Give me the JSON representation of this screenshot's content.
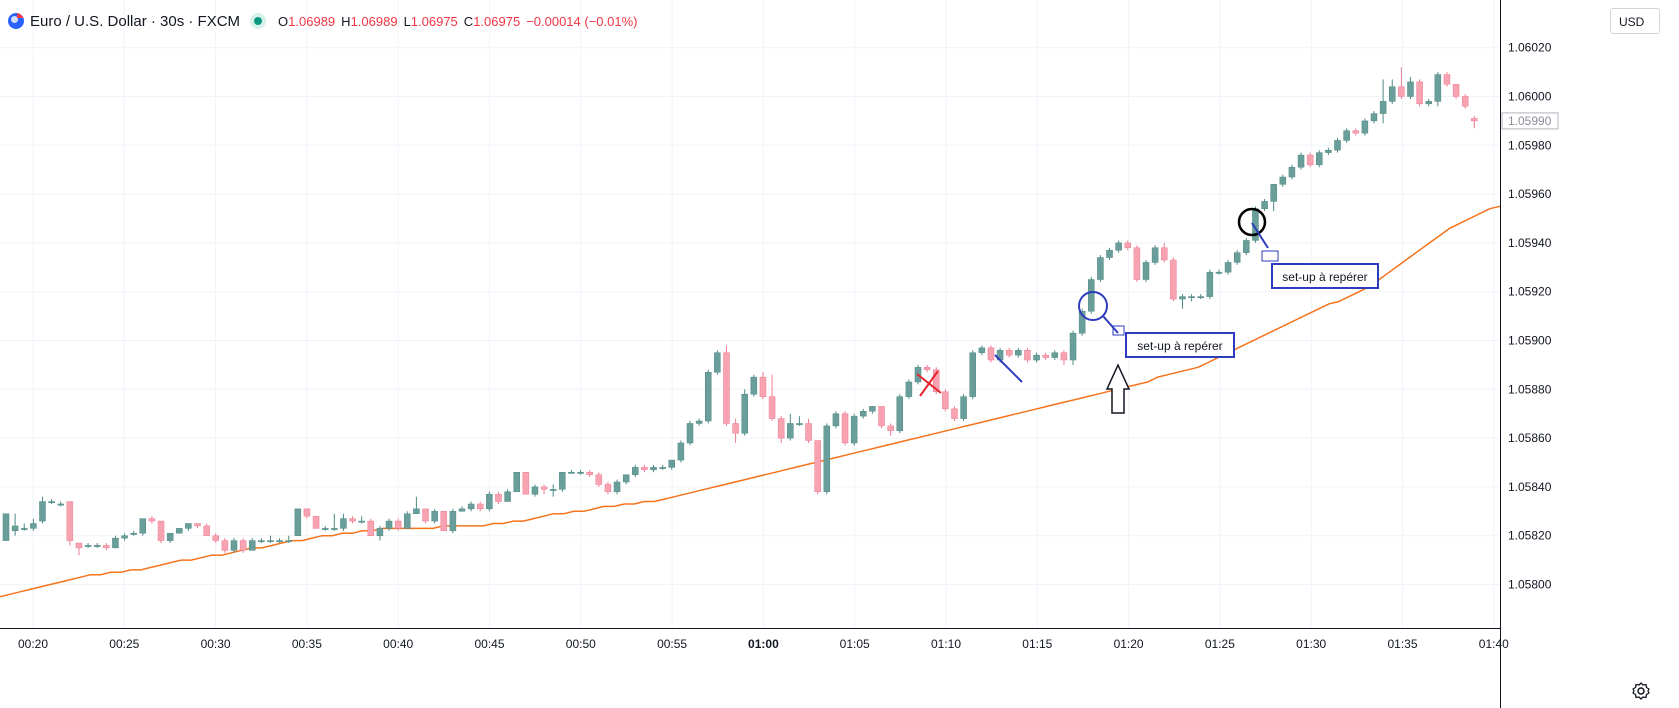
{
  "symbol": {
    "title": "Euro / U.S. Dollar · 30s · FXCM",
    "open_label": "O",
    "open": "1.06989",
    "high_label": "H",
    "high": "1.06989",
    "low_label": "L",
    "low": "1.06975",
    "close_label": "C",
    "close": "1.06975",
    "change": "−0.00014 (−0.01%)"
  },
  "currency_button": "USD",
  "icons": {
    "logo": "currency-logo-icon",
    "status": "market-status-dot-icon",
    "settings": "gear-icon"
  },
  "colors": {
    "up": "#6a9e9a",
    "down": "#f7a3b2",
    "ma_line": "#f7731c",
    "annotation_blue": "#2d3bbd",
    "annotation_red": "#e8252f"
  },
  "chart_data": {
    "type": "candlestick",
    "price_axis": {
      "ticks": [
        "1.05800",
        "1.05820",
        "1.05840",
        "1.05860",
        "1.05880",
        "1.05900",
        "1.05920",
        "1.05940",
        "1.05960",
        "1.05980",
        "1.06000",
        "1.06020"
      ],
      "current_price_label": "1.05990",
      "range": [
        1.05788,
        1.06036
      ]
    },
    "time_axis": {
      "ticks": [
        "00:20",
        "00:25",
        "00:30",
        "00:35",
        "00:40",
        "00:45",
        "00:50",
        "00:55",
        "01:00",
        "01:05",
        "01:10",
        "01:15",
        "01:20",
        "01:25",
        "01:30",
        "01:35",
        "01:40"
      ],
      "bold_tick": "01:00"
    },
    "candles": [
      [
        1.05818,
        1.05829,
        1.05829,
        1.05818
      ],
      [
        1.05822,
        1.05824,
        1.05829,
        1.0582
      ],
      [
        1.05823,
        1.05823,
        1.05825,
        1.05822
      ],
      [
        1.05823,
        1.05825,
        1.05827,
        1.05822
      ],
      [
        1.05826,
        1.05834,
        1.05836,
        1.05825
      ],
      [
        1.05834,
        1.05834,
        1.05835,
        1.05833
      ],
      [
        1.05833,
        1.05833,
        1.05834,
        1.05832
      ],
      [
        1.05834,
        1.05818,
        1.05834,
        1.05816
      ],
      [
        1.05817,
        1.05815,
        1.05817,
        1.05812
      ],
      [
        1.05816,
        1.05816,
        1.05817,
        1.05815
      ],
      [
        1.05816,
        1.05816,
        1.05817,
        1.05815
      ],
      [
        1.05816,
        1.05815,
        1.05817,
        1.05814
      ],
      [
        1.05815,
        1.05819,
        1.0582,
        1.05815
      ],
      [
        1.05819,
        1.0582,
        1.05821,
        1.05818
      ],
      [
        1.05821,
        1.05821,
        1.05822,
        1.0582
      ],
      [
        1.05821,
        1.05827,
        1.05827,
        1.0582
      ],
      [
        1.05827,
        1.05826,
        1.05828,
        1.05825
      ],
      [
        1.05826,
        1.05818,
        1.05826,
        1.05817
      ],
      [
        1.05818,
        1.05821,
        1.05821,
        1.05817
      ],
      [
        1.05821,
        1.05823,
        1.05823,
        1.05821
      ],
      [
        1.05823,
        1.05825,
        1.05825,
        1.05822
      ],
      [
        1.05825,
        1.05824,
        1.05825,
        1.05823
      ],
      [
        1.05824,
        1.0582,
        1.05825,
        1.0582
      ],
      [
        1.0582,
        1.05818,
        1.05821,
        1.05817
      ],
      [
        1.05818,
        1.05814,
        1.05819,
        1.05813
      ],
      [
        1.05814,
        1.05818,
        1.05819,
        1.05813
      ],
      [
        1.05818,
        1.05814,
        1.05819,
        1.05813
      ],
      [
        1.05814,
        1.05818,
        1.05819,
        1.05814
      ],
      [
        1.05818,
        1.05818,
        1.05819,
        1.05817
      ],
      [
        1.05818,
        1.05818,
        1.0582,
        1.05817
      ],
      [
        1.05818,
        1.05818,
        1.05819,
        1.05817
      ],
      [
        1.05818,
        1.05818,
        1.0582,
        1.05817
      ],
      [
        1.0582,
        1.05831,
        1.05831,
        1.0582
      ],
      [
        1.05831,
        1.05828,
        1.05831,
        1.05827
      ],
      [
        1.05828,
        1.05823,
        1.05828,
        1.05823
      ],
      [
        1.05823,
        1.05823,
        1.05824,
        1.05822
      ],
      [
        1.05823,
        1.05823,
        1.05829,
        1.05822
      ],
      [
        1.05823,
        1.05827,
        1.05829,
        1.05822
      ],
      [
        1.05827,
        1.05826,
        1.05828,
        1.05825
      ],
      [
        1.05826,
        1.05826,
        1.05828,
        1.05825
      ],
      [
        1.05826,
        1.0582,
        1.05827,
        1.0582
      ],
      [
        1.0582,
        1.05823,
        1.05824,
        1.05818
      ],
      [
        1.05823,
        1.05826,
        1.05827,
        1.05822
      ],
      [
        1.05826,
        1.05823,
        1.05827,
        1.05822
      ],
      [
        1.05823,
        1.05829,
        1.0583,
        1.05823
      ],
      [
        1.05829,
        1.05831,
        1.05836,
        1.05829
      ],
      [
        1.05831,
        1.05826,
        1.05831,
        1.05825
      ],
      [
        1.05826,
        1.0583,
        1.05831,
        1.05825
      ],
      [
        1.0583,
        1.05822,
        1.0583,
        1.05822
      ],
      [
        1.05822,
        1.0583,
        1.05831,
        1.05821
      ],
      [
        1.0583,
        1.05831,
        1.05832,
        1.0583
      ],
      [
        1.05831,
        1.05833,
        1.05834,
        1.0583
      ],
      [
        1.05833,
        1.05831,
        1.05834,
        1.0583
      ],
      [
        1.05831,
        1.05837,
        1.05838,
        1.0583
      ],
      [
        1.05837,
        1.05834,
        1.05838,
        1.05833
      ],
      [
        1.05834,
        1.05838,
        1.05839,
        1.05834
      ],
      [
        1.05838,
        1.05846,
        1.05846,
        1.05838
      ],
      [
        1.05846,
        1.05837,
        1.05846,
        1.05837
      ],
      [
        1.05837,
        1.0584,
        1.05841,
        1.05836
      ],
      [
        1.0584,
        1.05839,
        1.05841,
        1.05837
      ],
      [
        1.05839,
        1.05839,
        1.05841,
        1.05836
      ],
      [
        1.05839,
        1.05846,
        1.05846,
        1.05838
      ],
      [
        1.05846,
        1.05846,
        1.05847,
        1.05846
      ],
      [
        1.05846,
        1.05846,
        1.05847,
        1.05845
      ],
      [
        1.05846,
        1.05845,
        1.05847,
        1.05844
      ],
      [
        1.05845,
        1.05841,
        1.05846,
        1.0584
      ],
      [
        1.05841,
        1.05838,
        1.05842,
        1.05837
      ],
      [
        1.05838,
        1.05842,
        1.05843,
        1.05837
      ],
      [
        1.05842,
        1.05845,
        1.05845,
        1.05841
      ],
      [
        1.05845,
        1.05848,
        1.05849,
        1.05844
      ],
      [
        1.05848,
        1.05847,
        1.05849,
        1.05846
      ],
      [
        1.05847,
        1.05848,
        1.05849,
        1.05846
      ],
      [
        1.05848,
        1.05848,
        1.05849,
        1.05847
      ],
      [
        1.05848,
        1.05851,
        1.05851,
        1.05847
      ],
      [
        1.05851,
        1.05858,
        1.05859,
        1.0585
      ],
      [
        1.05858,
        1.05866,
        1.05867,
        1.05857
      ],
      [
        1.05866,
        1.05867,
        1.05868,
        1.05865
      ],
      [
        1.05867,
        1.05887,
        1.05888,
        1.05866
      ],
      [
        1.05887,
        1.05895,
        1.05896,
        1.05886
      ],
      [
        1.05895,
        1.05866,
        1.05898,
        1.05865
      ],
      [
        1.05866,
        1.05862,
        1.05868,
        1.05858
      ],
      [
        1.05862,
        1.05878,
        1.0588,
        1.05861
      ],
      [
        1.05878,
        1.05885,
        1.05886,
        1.05877
      ],
      [
        1.05885,
        1.05877,
        1.05887,
        1.05876
      ],
      [
        1.05877,
        1.05868,
        1.05886,
        1.05867
      ],
      [
        1.05868,
        1.0586,
        1.05869,
        1.05858
      ],
      [
        1.0586,
        1.05866,
        1.0587,
        1.05859
      ],
      [
        1.05866,
        1.05866,
        1.05869,
        1.05865
      ],
      [
        1.05866,
        1.05859,
        1.05868,
        1.05858
      ],
      [
        1.05859,
        1.05838,
        1.05859,
        1.05837
      ],
      [
        1.05838,
        1.05865,
        1.05866,
        1.05837
      ],
      [
        1.05865,
        1.0587,
        1.05871,
        1.05864
      ],
      [
        1.0587,
        1.05858,
        1.05871,
        1.05857
      ],
      [
        1.05858,
        1.05869,
        1.0587,
        1.05857
      ],
      [
        1.05869,
        1.05871,
        1.05872,
        1.05868
      ],
      [
        1.05871,
        1.05873,
        1.05873,
        1.0587
      ],
      [
        1.05873,
        1.05865,
        1.05873,
        1.05864
      ],
      [
        1.05865,
        1.05863,
        1.05866,
        1.05861
      ],
      [
        1.05863,
        1.05877,
        1.05878,
        1.05862
      ],
      [
        1.05877,
        1.05883,
        1.05884,
        1.05876
      ],
      [
        1.05883,
        1.05889,
        1.0589,
        1.05882
      ],
      [
        1.05889,
        1.05888,
        1.0589,
        1.05887
      ],
      [
        1.05888,
        1.05879,
        1.05889,
        1.05878
      ],
      [
        1.05879,
        1.05872,
        1.0588,
        1.05871
      ],
      [
        1.05872,
        1.05868,
        1.05873,
        1.05867
      ],
      [
        1.05868,
        1.05877,
        1.05878,
        1.05867
      ],
      [
        1.05877,
        1.05895,
        1.05896,
        1.05876
      ],
      [
        1.05895,
        1.05897,
        1.05898,
        1.05894
      ],
      [
        1.05897,
        1.05892,
        1.05898,
        1.05891
      ],
      [
        1.05892,
        1.05896,
        1.05897,
        1.05891
      ],
      [
        1.05896,
        1.05894,
        1.05897,
        1.05893
      ],
      [
        1.05894,
        1.05896,
        1.05897,
        1.05893
      ],
      [
        1.05896,
        1.05892,
        1.05897,
        1.05891
      ],
      [
        1.05892,
        1.05894,
        1.05895,
        1.05891
      ],
      [
        1.05894,
        1.05893,
        1.05895,
        1.05892
      ],
      [
        1.05893,
        1.05895,
        1.05896,
        1.05892
      ],
      [
        1.05895,
        1.05892,
        1.05896,
        1.0589
      ],
      [
        1.05892,
        1.05903,
        1.05904,
        1.0589
      ],
      [
        1.05903,
        1.05912,
        1.05913,
        1.05902
      ],
      [
        1.05912,
        1.05925,
        1.05926,
        1.05911
      ],
      [
        1.05925,
        1.05934,
        1.05935,
        1.05924
      ],
      [
        1.05934,
        1.05937,
        1.05938,
        1.05933
      ],
      [
        1.05937,
        1.0594,
        1.05941,
        1.05936
      ],
      [
        1.0594,
        1.05938,
        1.05941,
        1.05937
      ],
      [
        1.05938,
        1.05925,
        1.05939,
        1.05924
      ],
      [
        1.05925,
        1.05932,
        1.05933,
        1.05924
      ],
      [
        1.05932,
        1.05938,
        1.05939,
        1.05931
      ],
      [
        1.05938,
        1.05933,
        1.0594,
        1.05932
      ],
      [
        1.05933,
        1.05917,
        1.05934,
        1.05916
      ],
      [
        1.05917,
        1.05918,
        1.05919,
        1.05913
      ],
      [
        1.05918,
        1.05918,
        1.05919,
        1.05916
      ],
      [
        1.05918,
        1.05918,
        1.05919,
        1.05917
      ],
      [
        1.05918,
        1.05928,
        1.05929,
        1.05917
      ],
      [
        1.05928,
        1.05928,
        1.05929,
        1.05927
      ],
      [
        1.05928,
        1.05932,
        1.05933,
        1.05927
      ],
      [
        1.05932,
        1.05936,
        1.05937,
        1.05931
      ],
      [
        1.05936,
        1.05941,
        1.05942,
        1.05935
      ],
      [
        1.05941,
        1.05954,
        1.05955,
        1.0594
      ],
      [
        1.05954,
        1.05957,
        1.05958,
        1.05953
      ],
      [
        1.05957,
        1.05964,
        1.05964,
        1.05953
      ],
      [
        1.05964,
        1.05967,
        1.05968,
        1.05963
      ],
      [
        1.05967,
        1.05971,
        1.05972,
        1.05966
      ],
      [
        1.05971,
        1.05976,
        1.05977,
        1.0597
      ],
      [
        1.05976,
        1.05972,
        1.05977,
        1.05971
      ],
      [
        1.05972,
        1.05977,
        1.05978,
        1.05971
      ],
      [
        1.05977,
        1.05978,
        1.05979,
        1.05976
      ],
      [
        1.05978,
        1.05982,
        1.05983,
        1.05977
      ],
      [
        1.05982,
        1.05986,
        1.05987,
        1.05981
      ],
      [
        1.05986,
        1.05985,
        1.05987,
        1.05984
      ],
      [
        1.05985,
        1.0599,
        1.05991,
        1.05984
      ],
      [
        1.0599,
        1.05993,
        1.05994,
        1.05989
      ],
      [
        1.05993,
        1.05998,
        1.06007,
        1.05989
      ],
      [
        1.05998,
        1.06004,
        1.06007,
        1.05997
      ],
      [
        1.06004,
        1.06,
        1.06012,
        1.05999
      ],
      [
        1.06,
        1.06006,
        1.06008,
        1.05999
      ],
      [
        1.06006,
        1.05997,
        1.06007,
        1.05996
      ],
      [
        1.05997,
        1.05998,
        1.05999,
        1.05996
      ],
      [
        1.05998,
        1.06009,
        1.0601,
        1.05996
      ],
      [
        1.06009,
        1.06005,
        1.0601,
        1.06004
      ],
      [
        1.06005,
        1.06,
        1.06004,
        1.05999
      ],
      [
        1.06,
        1.05996,
        1.06001,
        1.05995
      ],
      [
        1.05991,
        1.0599,
        1.05992,
        1.05987
      ]
    ],
    "moving_average": [
      1.05795,
      1.05796,
      1.05797,
      1.05798,
      1.05799,
      1.058,
      1.05801,
      1.05802,
      1.05803,
      1.05804,
      1.05804,
      1.05805,
      1.05805,
      1.05806,
      1.05806,
      1.05807,
      1.05808,
      1.05809,
      1.0581,
      1.0581,
      1.05811,
      1.05812,
      1.05812,
      1.05813,
      1.05814,
      1.05815,
      1.05815,
      1.05816,
      1.05817,
      1.05818,
      1.05818,
      1.05819,
      1.0582,
      1.0582,
      1.05821,
      1.05821,
      1.05822,
      1.05822,
      1.05823,
      1.05823,
      1.05823,
      1.05823,
      1.05823,
      1.05823,
      1.05824,
      1.05824,
      1.05824,
      1.05824,
      1.05824,
      1.05825,
      1.05825,
      1.05826,
      1.05826,
      1.05827,
      1.05828,
      1.05829,
      1.05829,
      1.0583,
      1.0583,
      1.05831,
      1.05832,
      1.05832,
      1.05833,
      1.05833,
      1.05834,
      1.05834,
      1.05835,
      1.05836,
      1.05837,
      1.05838,
      1.05839,
      1.0584,
      1.05841,
      1.05842,
      1.05843,
      1.05844,
      1.05845,
      1.05846,
      1.05847,
      1.05848,
      1.05849,
      1.0585,
      1.05851,
      1.05852,
      1.05853,
      1.05854,
      1.05855,
      1.05856,
      1.05857,
      1.05858,
      1.05859,
      1.0586,
      1.05861,
      1.05862,
      1.05863,
      1.05864,
      1.05865,
      1.05866,
      1.05867,
      1.05868,
      1.05869,
      1.0587,
      1.05871,
      1.05872,
      1.05873,
      1.05874,
      1.05875,
      1.05876,
      1.05877,
      1.05878,
      1.05879,
      1.0588,
      1.05881,
      1.05882,
      1.05883,
      1.05885,
      1.05886,
      1.05887,
      1.05888,
      1.05889,
      1.05891,
      1.05893,
      1.05895,
      1.05897,
      1.05899,
      1.05901,
      1.05903,
      1.05905,
      1.05907,
      1.05909,
      1.05911,
      1.05913,
      1.05915,
      1.05916,
      1.05918,
      1.0592,
      1.05922,
      1.05925,
      1.05928,
      1.05931,
      1.05934,
      1.05937,
      1.0594,
      1.05943,
      1.05946,
      1.05948,
      1.0595,
      1.05952,
      1.05954,
      1.05955
    ],
    "annotations": {
      "setup_label_1": "set-up à repérer",
      "setup_label_2": "set-up à repérer"
    }
  }
}
